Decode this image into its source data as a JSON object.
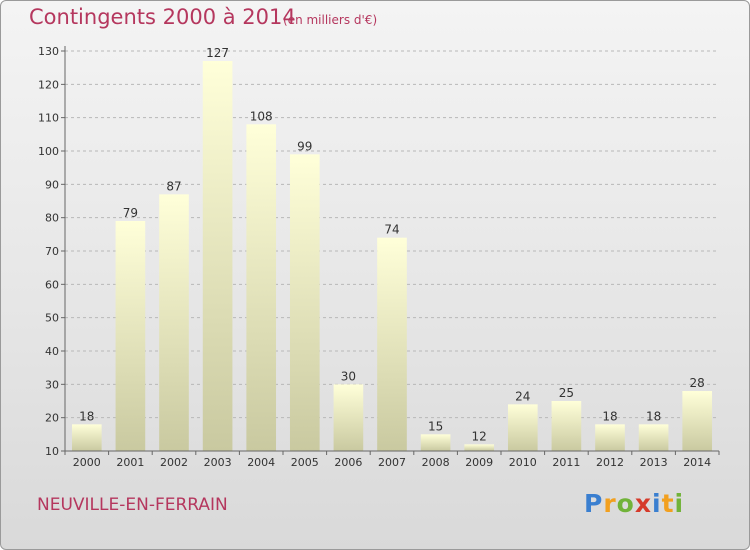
{
  "header": {
    "title": "Contingents 2000 à 2014",
    "subtitle": "(en milliers d'€)"
  },
  "footer": {
    "commune": "NEUVILLE-EN-FERRAIN",
    "logo_letters": [
      {
        "char": "P",
        "color": "#3a7fd0"
      },
      {
        "char": "r",
        "color": "#f2a01f"
      },
      {
        "char": "o",
        "color": "#71b339"
      },
      {
        "char": "x",
        "color": "#d63a2a"
      },
      {
        "char": "i",
        "color": "#3a7fd0"
      },
      {
        "char": "t",
        "color": "#f2a01f"
      },
      {
        "char": "i",
        "color": "#71b339"
      }
    ]
  },
  "chart_data": {
    "type": "bar",
    "title": "Contingents 2000 à 2014",
    "subtitle": "(en milliers d'€)",
    "xlabel": "",
    "ylabel": "",
    "categories": [
      "2000",
      "2001",
      "2002",
      "2003",
      "2004",
      "2005",
      "2006",
      "2007",
      "2008",
      "2009",
      "2010",
      "2011",
      "2012",
      "2013",
      "2014"
    ],
    "values": [
      18,
      79,
      87,
      127,
      108,
      99,
      30,
      74,
      15,
      12,
      24,
      25,
      18,
      18,
      28
    ],
    "data_labels": [
      "18",
      "79",
      "87",
      "127",
      "108",
      "99",
      "30",
      "74",
      "15",
      "12",
      "24",
      "25",
      "18",
      "18",
      "28"
    ],
    "ylim": [
      10,
      130
    ],
    "yticks": [
      10,
      20,
      30,
      40,
      50,
      60,
      70,
      80,
      90,
      100,
      110,
      120,
      130
    ],
    "grid": "horizontal-dashed",
    "legend": "none",
    "colors": {
      "bar_top": "#ffffd9",
      "bar_bottom": "#c9c9a0",
      "grid": "#b8b8b8",
      "axis": "#666666"
    }
  }
}
